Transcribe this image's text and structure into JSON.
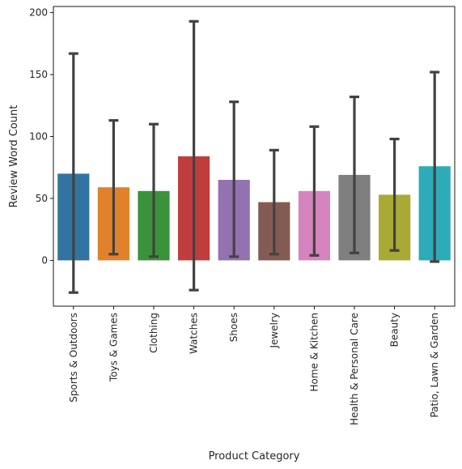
{
  "chart_data": {
    "type": "bar",
    "title": "",
    "xlabel": "Product Category",
    "ylabel": "Review Word Count",
    "ylim": [
      -37,
      205
    ],
    "yticks": [
      0,
      50,
      100,
      150,
      200
    ],
    "grid": false,
    "legend": "none",
    "categories": [
      "Sports & Outdoors",
      "Toys & Games",
      "Clothing",
      "Watches",
      "Shoes",
      "Jewelry",
      "Home & Kitchen",
      "Health & Personal Care",
      "Beauty",
      "Patio, Lawn & Garden"
    ],
    "values": [
      70,
      59,
      56,
      84,
      65,
      47,
      56,
      69,
      53,
      76
    ],
    "error_low": [
      -26,
      5,
      3,
      -24,
      3,
      5,
      4,
      6,
      8,
      -1
    ],
    "error_high": [
      167,
      113,
      110,
      193,
      128,
      89,
      108,
      132,
      98,
      152
    ],
    "colors": [
      "#3274a1",
      "#e1812c",
      "#3a923a",
      "#c03d3e",
      "#9372b2",
      "#845b53",
      "#d684bd",
      "#7f7f7f",
      "#a9aa35",
      "#2eabb8"
    ],
    "errorbar_color": "#424242"
  }
}
